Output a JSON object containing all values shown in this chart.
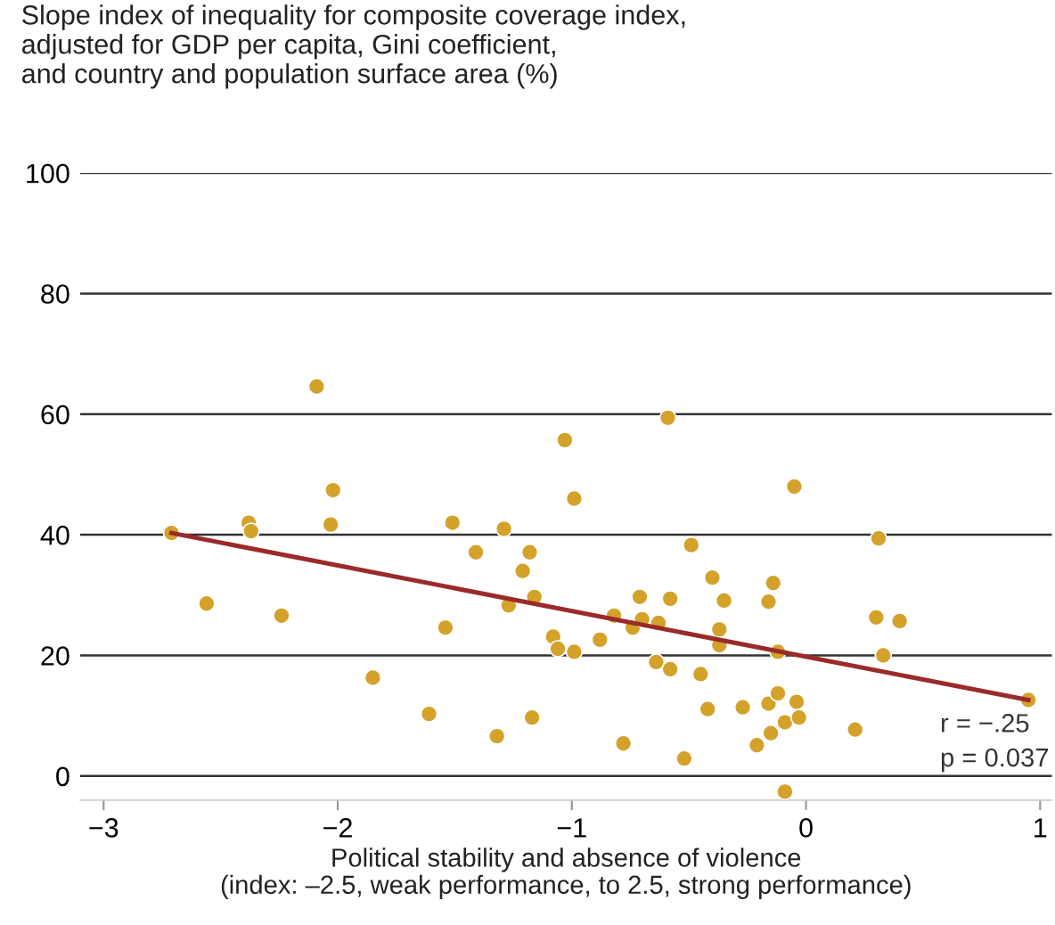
{
  "chart_data": {
    "type": "scatter",
    "ylabel": "Slope index of inequality for composite coverage index,\nadjusted for GDP per capita, Gini coefficient,\nand country and population surface area (%)",
    "xlabel": "Political stability and absence of violence\n(index: –2.5, weak performance, to 2.5, strong performance)",
    "xlim": [
      -3.1,
      1.05
    ],
    "ylim": [
      -4,
      100
    ],
    "xticks": [
      {
        "value": -3,
        "label": "−3"
      },
      {
        "value": -2,
        "label": "−2"
      },
      {
        "value": -1,
        "label": "−1"
      },
      0,
      1
    ],
    "yticks": [
      0,
      20,
      40,
      60,
      80,
      100
    ],
    "grid": "y",
    "series": [
      {
        "color": "#d4a12a",
        "marker": "circle",
        "x": [
          -2.71,
          -2.56,
          -2.38,
          -2.37,
          -2.24,
          -2.09,
          -2.02,
          -2.03,
          -1.85,
          -1.61,
          -1.54,
          -1.51,
          -1.41,
          -1.32,
          -1.29,
          -1.27,
          -1.21,
          -1.18,
          -1.16,
          -1.17,
          -1.08,
          -1.06,
          -1.03,
          -0.99,
          -0.99,
          -0.88,
          -0.82,
          -0.78,
          -0.74,
          -0.71,
          -0.7,
          -0.64,
          -0.63,
          -0.59,
          -0.58,
          -0.58,
          -0.49,
          -0.52,
          -0.45,
          -0.42,
          -0.4,
          -0.35,
          -0.37,
          -0.37,
          -0.27,
          -0.21,
          -0.15,
          -0.16,
          -0.12,
          -0.09,
          -0.04,
          -0.03,
          -0.14,
          -0.16,
          -0.12,
          -0.05,
          -0.09,
          0.21,
          0.31,
          0.3,
          0.4,
          0.33,
          0.95
        ],
        "values": [
          40.3,
          28.6,
          42.0,
          40.6,
          26.6,
          64.6,
          47.4,
          41.7,
          16.3,
          10.3,
          24.6,
          42.0,
          37.1,
          6.6,
          41.0,
          28.3,
          34.0,
          37.1,
          29.7,
          9.7,
          23.1,
          21.1,
          55.7,
          46.0,
          20.6,
          22.6,
          26.6,
          5.4,
          24.6,
          29.7,
          26.0,
          18.9,
          25.4,
          59.4,
          29.4,
          17.7,
          38.3,
          2.9,
          16.9,
          11.1,
          32.9,
          29.1,
          24.3,
          21.7,
          11.4,
          5.1,
          7.1,
          12.0,
          13.7,
          8.9,
          12.3,
          9.7,
          32.0,
          28.9,
          20.6,
          48.0,
          -2.6,
          7.7,
          39.4,
          26.3,
          25.7,
          20.0,
          12.6
        ]
      },
      {
        "type": "line",
        "color": "#9b2a2a",
        "x": [
          -2.71,
          0.95
        ],
        "values": [
          40.3,
          12.6
        ]
      }
    ],
    "annotations": [
      "r = −.25",
      "p = 0.037"
    ]
  }
}
